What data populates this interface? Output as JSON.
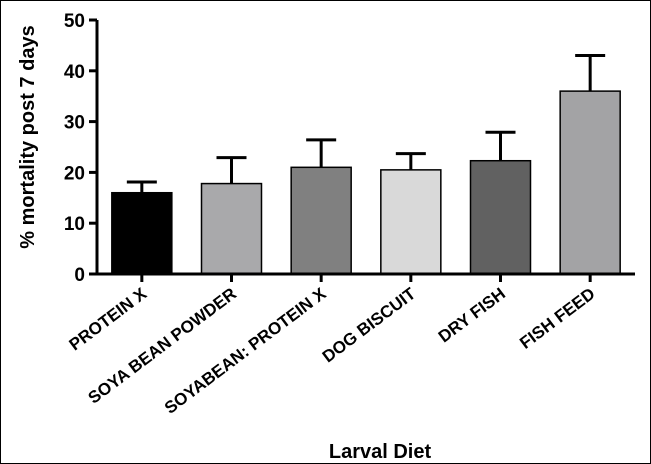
{
  "chart_data": {
    "type": "bar",
    "title": "",
    "xlabel": "Larval Diet",
    "ylabel": "% mortality post 7 days",
    "ylim": [
      0,
      50
    ],
    "yticks": [
      0,
      10,
      20,
      30,
      40,
      50
    ],
    "grid": false,
    "legend": "none",
    "categories": [
      "PROTEIN X",
      "SOYA BEAN POWDER",
      "SOYABEAN: PROTEIN X",
      "DOG BISCUIT",
      "DRY FISH",
      "FISH FEED"
    ],
    "values": [
      16,
      17.8,
      21,
      20.5,
      22.3,
      36
    ],
    "error_upper": [
      2.1,
      5.1,
      5.4,
      3.2,
      5.6,
      7
    ],
    "colors": [
      "#000000",
      "#a9a9ab",
      "#808080",
      "#d9d9d9",
      "#616161",
      "#a3a3a5"
    ]
  }
}
